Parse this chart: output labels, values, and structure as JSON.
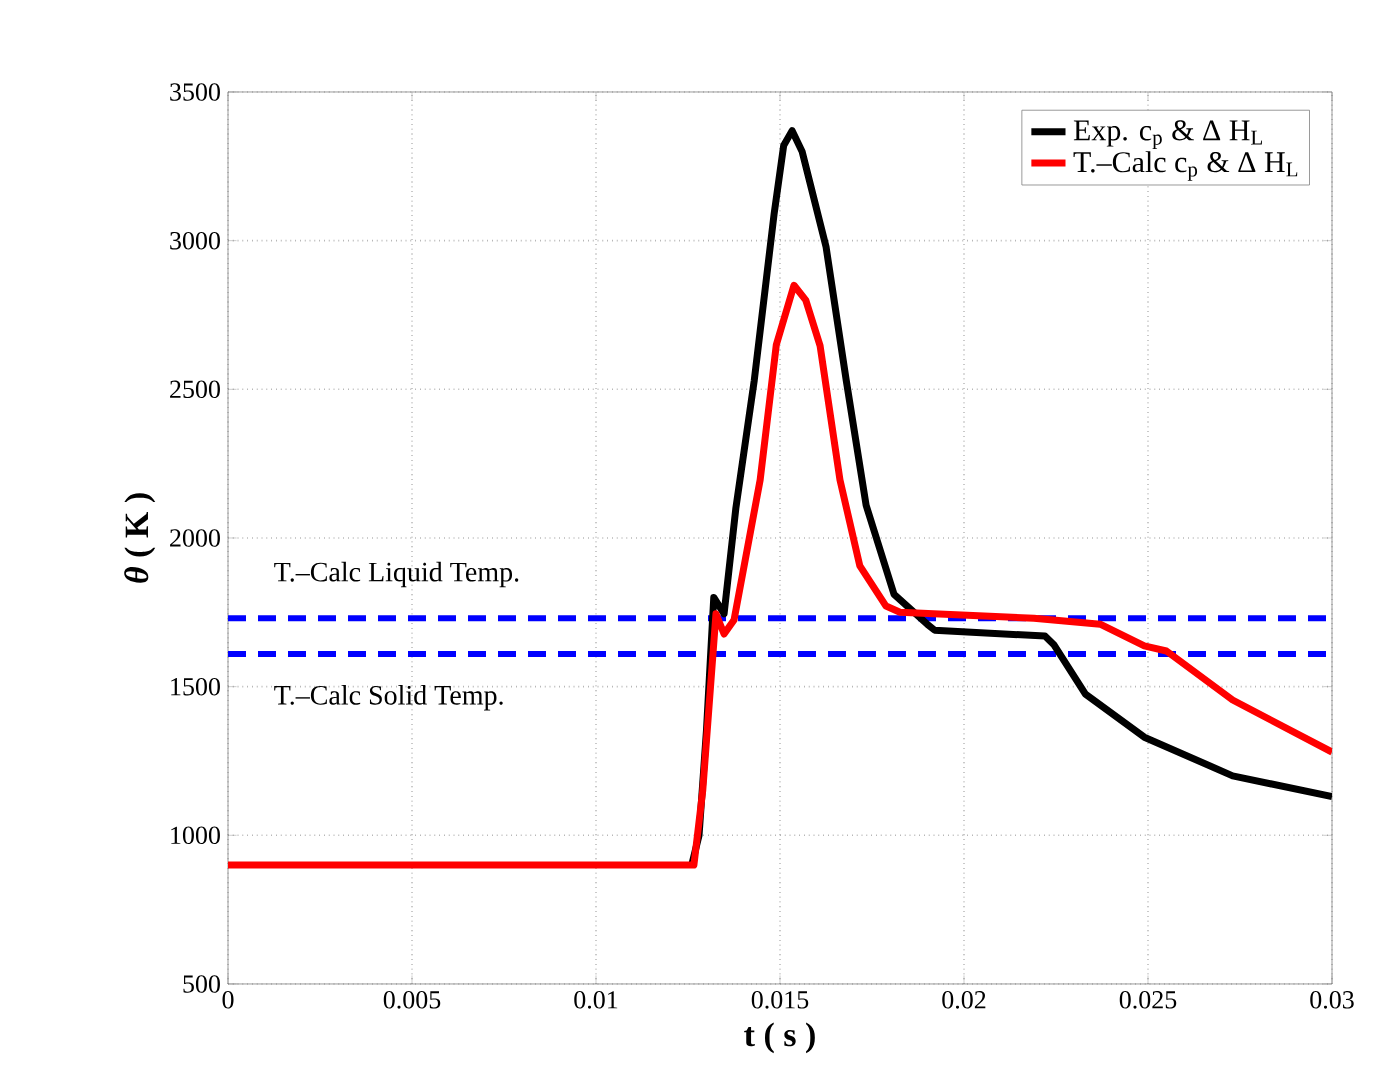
{
  "chart_data": {
    "type": "line",
    "xlabel": "t ( s )",
    "ylabel": "*θ* ( K )",
    "xlim": [
      0,
      0.03
    ],
    "xticks": [
      0,
      0.005,
      0.01,
      0.015,
      0.02,
      0.025,
      0.03
    ],
    "ylim": [
      500,
      3500
    ],
    "yticks": [
      500,
      1000,
      1500,
      2000,
      2500,
      3000,
      3500
    ],
    "grid": true,
    "legend": "top right",
    "marker": "none",
    "line_style": "solid",
    "series": [
      {
        "name": "Exp. c$_{p}$ & Δ H$_{L}$",
        "color": "#000000",
        "x": [
          0.0126,
          0.0128,
          0.013,
          0.0132,
          0.01348,
          0.0138,
          0.0143,
          0.01484,
          0.0151,
          0.01533,
          0.0156,
          0.01625,
          0.0168,
          0.01734,
          0.0181,
          0.019,
          0.0192,
          0.0222,
          0.02245,
          0.0233,
          0.0249,
          0.0273,
          0.03
        ],
        "values": [
          900,
          1000,
          1350,
          1800,
          1745,
          2100,
          2530,
          3090,
          3320,
          3370,
          3300,
          2980,
          2530,
          2110,
          1810,
          1710,
          1690,
          1670,
          1640,
          1475,
          1330,
          1200,
          1130
        ]
      },
      {
        "name": "T.–Calc c$_{p}$ & Δ H$_{L}$",
        "color": "#ff0000",
        "x": [
          0,
          0.01266,
          0.0129,
          0.01326,
          0.01348,
          0.01375,
          0.01446,
          0.0149,
          0.01538,
          0.0157,
          0.01609,
          0.01663,
          0.01717,
          0.01788,
          0.01826,
          0.0219,
          0.0237,
          0.0249,
          0.0255,
          0.0273,
          0.03
        ],
        "values": [
          900,
          900,
          1150,
          1745,
          1677,
          1724,
          2195,
          2650,
          2850,
          2800,
          2646,
          2195,
          1906,
          1771,
          1750,
          1730,
          1710,
          1637,
          1620,
          1455,
          1280
        ]
      }
    ],
    "ref_lines": [
      {
        "axis": "y",
        "value": 1730,
        "label": "T.–Calc Liquid Temp.",
        "color": "#0000ff",
        "line_style": "dashed"
      },
      {
        "axis": "y",
        "value": 1610,
        "label": "T.–Calc Solid Temp.",
        "color": "#0000ff",
        "line_style": "dashed"
      }
    ]
  }
}
